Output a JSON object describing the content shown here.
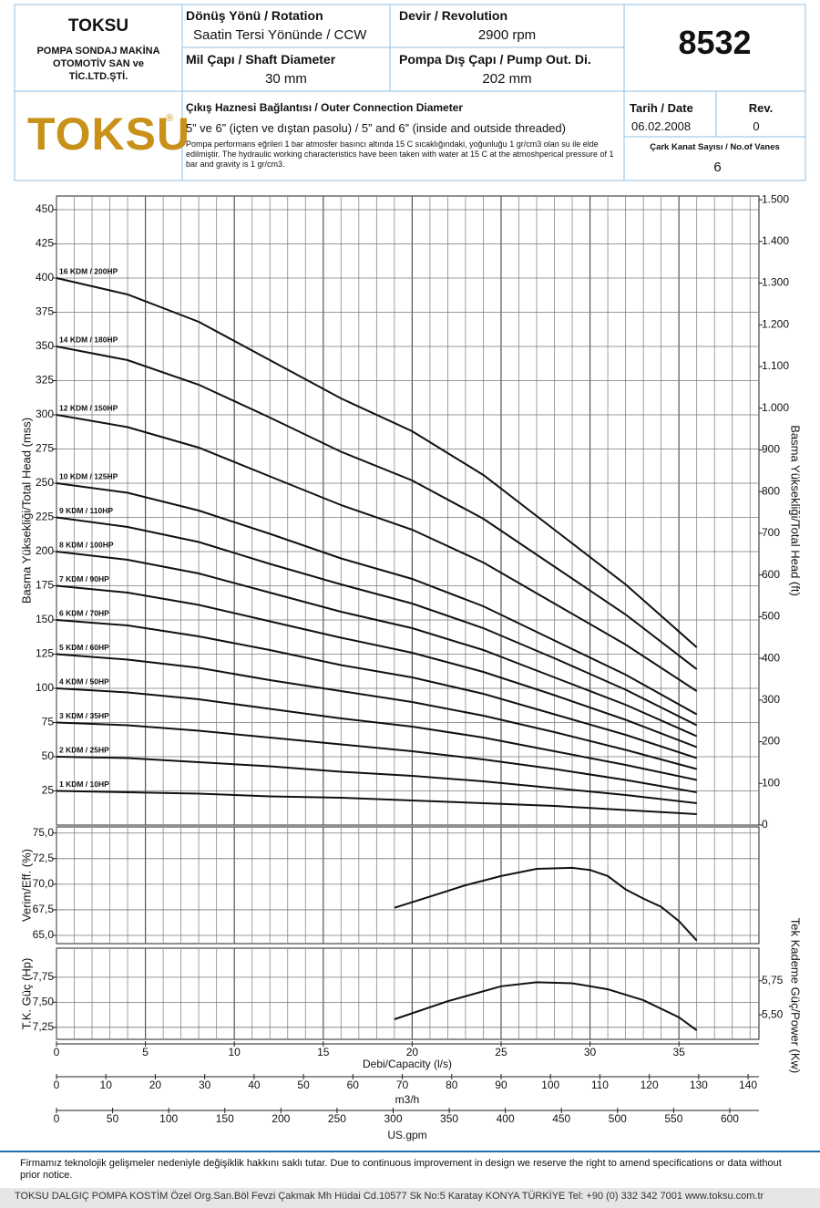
{
  "header": {
    "company": "TOKSU",
    "company_full": [
      "POMPA SONDAJ MAKİNA",
      "OTOMOTİV SAN ve",
      "TİC.LTD.ŞTİ."
    ],
    "logo": "TOKSU",
    "logo_mark": "®",
    "rotation_label": "Dönüş Yönü / Rotation",
    "rotation": "Saatin Tersi Yönünde / CCW",
    "revolution_label": "Devir / Revolution",
    "revolution": "2900 rpm",
    "model": "8532",
    "shaft_label": "Mil Çapı / Shaft Diameter",
    "shaft": "30 mm",
    "pump_od_label": "Pompa Dış Çapı / Pump Out. Di.",
    "pump_od": "202 mm",
    "outer_label": "Çıkış Haznesi Bağlantısı / Outer Connection Diameter",
    "outer": "5” ve 6” (içten ve dıştan pasolu) / 5” and 6” (inside and outside threaded)",
    "note": "Pompa performans eğrileri 1 bar atmosfer basıncı altında 15 C sıcaklığındaki, yoğunluğu 1 gr/cm3 olan su ile elde edilmiştir. The hydraulic working characteristics have been taken with water at 15 C at the atmoshperical pressure of 1 bar and gravity is 1 gr/cm3.",
    "date_label": "Tarih / Date",
    "date": "06.02.2008",
    "rev_label": "Rev.",
    "rev": "0",
    "vanes_label": "Çark Kanat Sayısı / No.of Vanes",
    "vanes": "6"
  },
  "chart_data": [
    {
      "type": "line",
      "ylabel": "Basma Yüksekliği/Total Head (mss)",
      "y2label": "Basma Yüksekliği/Total Head (ft)",
      "grid": true,
      "xlim": [
        0,
        39.5
      ],
      "ylim": [
        0,
        460
      ],
      "yticks": [
        25,
        50,
        75,
        100,
        125,
        150,
        175,
        200,
        225,
        250,
        275,
        300,
        325,
        350,
        375,
        400,
        425,
        450
      ],
      "y2lim": [
        0,
        1509
      ],
      "y2ticks": [
        0,
        100,
        200,
        300,
        400,
        500,
        600,
        700,
        800,
        900,
        {
          "value": 1000,
          "label": "1.000"
        },
        {
          "value": 1100,
          "label": "1.100"
        },
        {
          "value": 1200,
          "label": "1.200"
        },
        {
          "value": 1300,
          "label": "1.300"
        },
        {
          "value": 1400,
          "label": "1.400"
        },
        {
          "value": 1500,
          "label": "1.500"
        }
      ],
      "x": [
        0,
        4,
        8,
        12,
        16,
        20,
        24,
        28,
        32,
        36
      ],
      "series": [
        {
          "name": "16 KDM / 200HP",
          "color": "#111111",
          "values": [
            400,
            388,
            368,
            340,
            312,
            288,
            256,
            216,
            176,
            130
          ]
        },
        {
          "name": "14 KDM / 180HP",
          "color": "#111111",
          "values": [
            350,
            340,
            322,
            298,
            273,
            252,
            224,
            189,
            154,
            114
          ]
        },
        {
          "name": "12 KDM / 150HP",
          "color": "#111111",
          "values": [
            300,
            291,
            276,
            255,
            234,
            216,
            192,
            162,
            132,
            98
          ]
        },
        {
          "name": "10 KDM / 125HP",
          "color": "#111111",
          "values": [
            250,
            243,
            230,
            213,
            195,
            180,
            160,
            135,
            110,
            81
          ]
        },
        {
          "name": "9 KDM / 110HP",
          "color": "#111111",
          "values": [
            225,
            218,
            207,
            191,
            176,
            162,
            144,
            122,
            99,
            73
          ]
        },
        {
          "name": "8 KDM / 100HP",
          "color": "#111111",
          "values": [
            200,
            194,
            184,
            170,
            156,
            144,
            128,
            108,
            88,
            65
          ]
        },
        {
          "name": "7 KDM / 90HP",
          "color": "#111111",
          "values": [
            175,
            170,
            161,
            149,
            137,
            126,
            112,
            95,
            77,
            57
          ]
        },
        {
          "name": "6 KDM / 70HP",
          "color": "#111111",
          "values": [
            150,
            146,
            138,
            128,
            117,
            108,
            96,
            81,
            66,
            49
          ]
        },
        {
          "name": "5 KDM / 60HP",
          "color": "#111111",
          "values": [
            125,
            121,
            115,
            106,
            98,
            90,
            80,
            68,
            55,
            41
          ]
        },
        {
          "name": "4 KDM / 50HP",
          "color": "#111111",
          "values": [
            100,
            97,
            92,
            85,
            78,
            72,
            64,
            54,
            44,
            33
          ]
        },
        {
          "name": "3 KDM / 35HP",
          "color": "#111111",
          "values": [
            75,
            73,
            69,
            64,
            59,
            54,
            48,
            41,
            33,
            24
          ]
        },
        {
          "name": "2 KDM / 25HP",
          "color": "#111111",
          "values": [
            50,
            49,
            46,
            43,
            39,
            36,
            32,
            27,
            22,
            16
          ]
        },
        {
          "name": "1 KDM / 10HP",
          "color": "#111111",
          "values": [
            25,
            24,
            23,
            21,
            20,
            18,
            16,
            14,
            11,
            8
          ]
        }
      ]
    },
    {
      "type": "line",
      "ylabel": "Verim/Eff. (%)",
      "grid": true,
      "xlim": [
        0,
        39.5
      ],
      "ylim": [
        64.2,
        75.6
      ],
      "yticks": [
        {
          "value": 65,
          "label": "65,0"
        },
        {
          "value": 67.5,
          "label": "67,5"
        },
        {
          "value": 70,
          "label": "70,0"
        },
        {
          "value": 72.5,
          "label": "72,5"
        },
        {
          "value": 75,
          "label": "75,0"
        }
      ],
      "x": [
        19,
        21,
        23,
        25,
        27,
        29,
        30,
        31,
        32,
        33,
        34,
        35,
        36
      ],
      "series": [
        {
          "color": "#111111",
          "values": [
            67.7,
            68.8,
            69.9,
            70.8,
            71.5,
            71.6,
            71.4,
            70.8,
            69.5,
            68.6,
            67.8,
            66.4,
            64.5
          ]
        }
      ]
    },
    {
      "type": "line",
      "ylabel": "T.K. Güç (Hp)",
      "y2label": "Tek Kademe Güç/Power (Kw)",
      "grid": true,
      "xlim": [
        0,
        39.5
      ],
      "ylim": [
        7.13,
        8.04
      ],
      "yticks": [
        {
          "value": 7.25,
          "label": "7,25"
        },
        {
          "value": 7.5,
          "label": "7,50"
        },
        {
          "value": 7.75,
          "label": "7,75"
        }
      ],
      "y2lim": [
        5.32,
        5.99
      ],
      "y2ticks": [
        {
          "value": 5.5,
          "label": "5,50"
        },
        {
          "value": 5.75,
          "label": "5,75"
        }
      ],
      "x": [
        19,
        22,
        25,
        27,
        29,
        31,
        33,
        35,
        36
      ],
      "series": [
        {
          "color": "#111111",
          "values": [
            7.33,
            7.51,
            7.66,
            7.7,
            7.69,
            7.63,
            7.52,
            7.35,
            7.22
          ]
        }
      ],
      "xlabel": "Debi/Capacity (l/s)",
      "xticks": [
        0,
        5,
        10,
        15,
        20,
        25,
        30,
        35
      ],
      "xminorticks": [
        0,
        1,
        2,
        3,
        4,
        5,
        6,
        7,
        8,
        9,
        10,
        11,
        12,
        13,
        14,
        15,
        16,
        17,
        18,
        19,
        20,
        21,
        22,
        23,
        24,
        25,
        26,
        27,
        28,
        29,
        30,
        31,
        32,
        33,
        34,
        35,
        36,
        37,
        38,
        39
      ],
      "x2label": "m3/h",
      "x2lim": [
        0,
        142.2
      ],
      "x2ticks": [
        0,
        10,
        20,
        30,
        40,
        50,
        60,
        70,
        80,
        90,
        100,
        110,
        120,
        130,
        140
      ],
      "x3label": "US.gpm",
      "x3lim": [
        0,
        626
      ],
      "x3ticks": [
        0,
        50,
        100,
        150,
        200,
        250,
        300,
        350,
        400,
        450,
        500,
        550,
        600
      ]
    }
  ],
  "footer": {
    "disclaimer": "Firmamız teknolojik gelişmeler nedeniyle değişiklik hakkını saklı tutar. Due to continuous improvement in design we reserve the right to amend specifications or data without prior notice.",
    "address": "TOKSU DALGIÇ POMPA  KOSTİM Özel Org.San.Böl Fevzi Çakmak Mh Hüdai Cd.10577 Sk No:5 Karatay KONYA TÜRKİYE Tel: +90 (0) 332 342 7001 www.toksu.com.tr"
  }
}
